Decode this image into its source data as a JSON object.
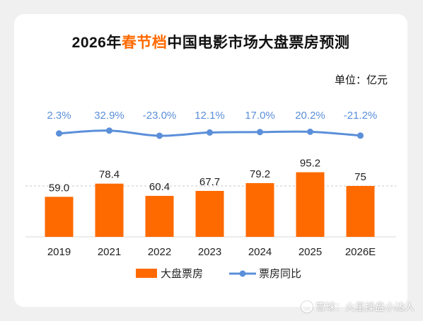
{
  "title": {
    "prefix": "2026年",
    "highlight": "春节档",
    "suffix": "中国电影市场大盘票房预测"
  },
  "unit_label": "单位：亿元",
  "watermark": {
    "text": "雪球：火星操盘小达人",
    "icon": "snowball-logo-icon"
  },
  "colors": {
    "bar": "#ff6a00",
    "line": "#5b8fd9",
    "title_highlight": "#ff6a00"
  },
  "chart_data": {
    "type": "bar+line",
    "categories": [
      "2019",
      "2021",
      "2022",
      "2023",
      "2024",
      "2025",
      "2026E"
    ],
    "series": [
      {
        "name": "大盘票房",
        "type": "bar",
        "values": [
          59.0,
          78.4,
          60.4,
          67.7,
          79.2,
          95.2,
          75
        ],
        "labels": [
          "59.0",
          "78.4",
          "60.4",
          "67.7",
          "79.2",
          "95.2",
          "75"
        ]
      },
      {
        "name": "票房同比",
        "type": "line",
        "values": [
          2.3,
          32.9,
          -23.0,
          12.1,
          17.0,
          20.2,
          -21.2
        ],
        "labels": [
          "2.3%",
          "32.9%",
          "-23.0%",
          "12.1%",
          "17.0%",
          "20.2%",
          "-21.2%"
        ]
      }
    ],
    "reference_line": {
      "style": "dashed",
      "value": 75
    },
    "legend_position": "bottom-center",
    "grid": false
  }
}
